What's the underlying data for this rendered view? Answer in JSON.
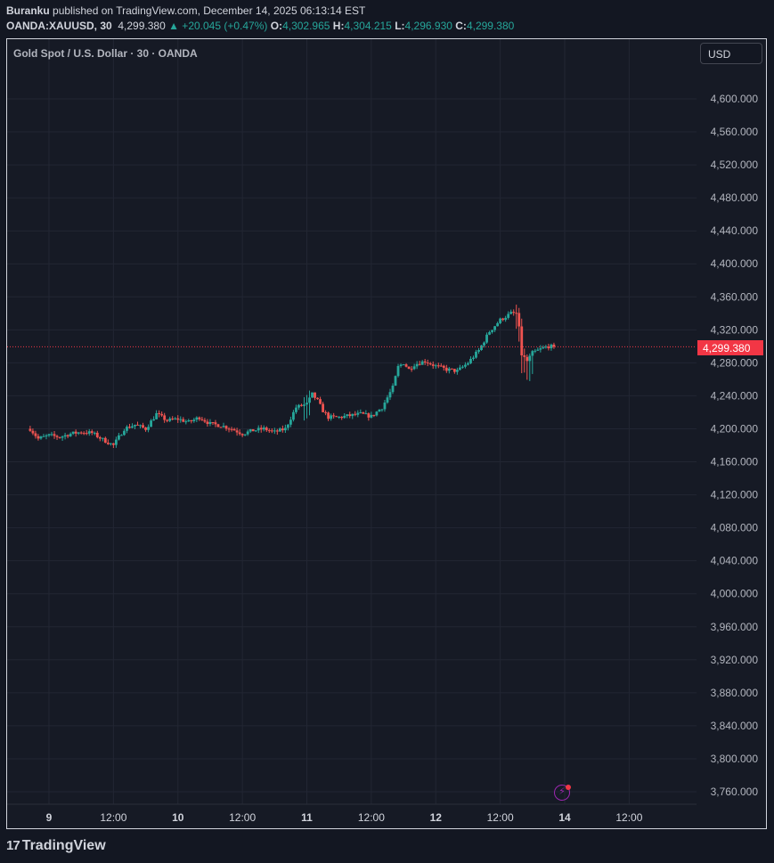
{
  "header": {
    "author": "Buranku",
    "published_text": " published on TradingView.com, December 14, 2025 06:13:14 EST",
    "symbol": "OANDA:XAUUSD, 30",
    "last_price": "4,299.380",
    "change": "▲ +20.045 (+0.47%)",
    "o_label": "O:",
    "o_value": "4,302.965",
    "h_label": "H:",
    "h_value": "4,304.215",
    "l_label": "L:",
    "l_value": "4,296.930",
    "c_label": "C:",
    "c_value": "4,299.380"
  },
  "chart_title": "Gold Spot / U.S. Dollar · 30 · OANDA",
  "currency_button": "USD",
  "last_price_badge": "4,299.380",
  "brand": "TradingView",
  "colors": {
    "up": "#26a69a",
    "down": "#ef5350",
    "grid": "#222633",
    "axis_text": "#b2b5be",
    "last_line": "#f23645"
  },
  "icons": [
    "flash-icon",
    "tradingview-logo-icon"
  ],
  "chart_data": {
    "type": "candlestick",
    "title": "Gold Spot / U.S. Dollar · 30 · OANDA",
    "y_ticks": [
      "3,760.000",
      "3,800.000",
      "3,840.000",
      "3,880.000",
      "3,920.000",
      "3,960.000",
      "4,000.000",
      "4,040.000",
      "4,080.000",
      "4,120.000",
      "4,160.000",
      "4,200.000",
      "4,240.000",
      "4,280.000",
      "4,320.000",
      "4,360.000",
      "4,400.000",
      "4,440.000",
      "4,480.000",
      "4,520.000",
      "4,560.000",
      "4,600.000"
    ],
    "y_tick_values": [
      3760,
      3800,
      3840,
      3880,
      3920,
      3960,
      4000,
      4040,
      4080,
      4120,
      4160,
      4200,
      4240,
      4280,
      4320,
      4360,
      4400,
      4440,
      4480,
      4520,
      4560,
      4600
    ],
    "x_ticks": [
      "9",
      "12:00",
      "10",
      "12:00",
      "11",
      "12:00",
      "12",
      "12:00",
      "14",
      "12:00"
    ],
    "x_tick_bold": [
      true,
      false,
      true,
      false,
      true,
      false,
      true,
      false,
      true,
      false
    ],
    "x_tick_hours": [
      0,
      12,
      24,
      36,
      48,
      60,
      72,
      84,
      96,
      108
    ],
    "x_range_hours": [
      -4,
      126
    ],
    "ylim": [
      3740,
      4640
    ],
    "last_price": 4299.38,
    "price_path": [
      [
        -3.5,
        4200
      ],
      [
        -2,
        4188
      ],
      [
        0,
        4192
      ],
      [
        2,
        4190
      ],
      [
        4,
        4194
      ],
      [
        6,
        4196
      ],
      [
        8,
        4195
      ],
      [
        10,
        4187
      ],
      [
        12,
        4180
      ],
      [
        14,
        4200
      ],
      [
        16,
        4205
      ],
      [
        18,
        4200
      ],
      [
        20,
        4218
      ],
      [
        22,
        4210
      ],
      [
        24,
        4212
      ],
      [
        26,
        4208
      ],
      [
        28,
        4214
      ],
      [
        30,
        4206
      ],
      [
        32,
        4204
      ],
      [
        34,
        4200
      ],
      [
        36,
        4194
      ],
      [
        38,
        4198
      ],
      [
        40,
        4200
      ],
      [
        42,
        4196
      ],
      [
        44,
        4200
      ],
      [
        46,
        4226
      ],
      [
        48,
        4230
      ],
      [
        49,
        4242
      ],
      [
        50,
        4234
      ],
      [
        51,
        4222
      ],
      [
        52,
        4214
      ],
      [
        54,
        4214
      ],
      [
        56,
        4216
      ],
      [
        58,
        4218
      ],
      [
        60,
        4215
      ],
      [
        62,
        4226
      ],
      [
        64,
        4250
      ],
      [
        65,
        4275
      ],
      [
        66,
        4280
      ],
      [
        67,
        4272
      ],
      [
        68,
        4278
      ],
      [
        70,
        4282
      ],
      [
        72,
        4276
      ],
      [
        74,
        4272
      ],
      [
        76,
        4270
      ],
      [
        78,
        4280
      ],
      [
        80,
        4295
      ],
      [
        82,
        4318
      ],
      [
        84,
        4332
      ],
      [
        85,
        4336
      ],
      [
        86,
        4340
      ],
      [
        87,
        4340
      ],
      [
        87.6,
        4318
      ],
      [
        88,
        4290
      ],
      [
        89,
        4282
      ],
      [
        90,
        4292
      ],
      [
        92,
        4298
      ],
      [
        93,
        4300
      ],
      [
        94,
        4299.38
      ]
    ]
  }
}
